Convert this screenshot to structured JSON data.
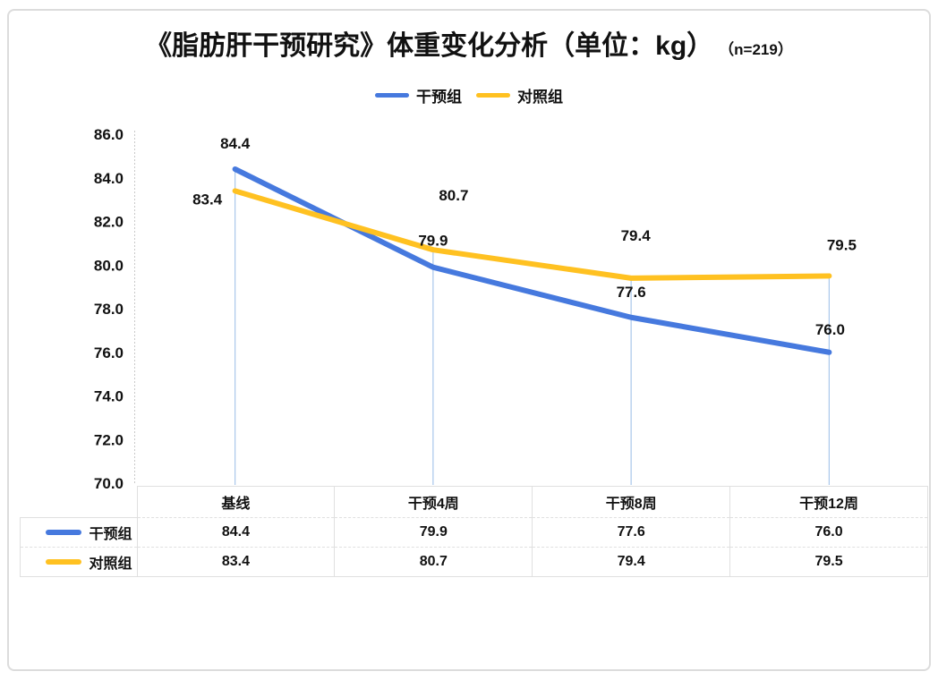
{
  "title": {
    "main": "《脂肪肝干预研究》体重变化分析（单位：kg）",
    "sample": "（n=219）"
  },
  "chart_data": {
    "type": "line",
    "title": "《脂肪肝干预研究》体重变化分析（单位：kg）（n=219）",
    "categories": [
      "基线",
      "干预4周",
      "干预8周",
      "干预12周"
    ],
    "series": [
      {
        "name": "干预组",
        "color": "#4679de",
        "values": [
          84.4,
          79.9,
          77.6,
          76.0
        ]
      },
      {
        "name": "对照组",
        "color": "#ffc121",
        "values": [
          83.4,
          80.7,
          79.4,
          79.5
        ]
      }
    ],
    "ylim": [
      70.0,
      86.0
    ],
    "ytick_step": 2.0,
    "ytick_labels": [
      "86.0",
      "84.0",
      "82.0",
      "80.0",
      "78.0",
      "76.0",
      "74.0",
      "72.0",
      "70.0"
    ],
    "legend_position": "top",
    "grid": false,
    "drop_lines": true,
    "data_table_shown": true,
    "value_decimals": 1
  },
  "colors": {
    "series_intervention": "#4679de",
    "series_control": "#ffc121",
    "drop_line": "#a9c7eb",
    "axis_line": "#c9c9c9",
    "table_border": "#e0e0e0",
    "frame_border": "#dcdcdc",
    "text": "#111111"
  }
}
